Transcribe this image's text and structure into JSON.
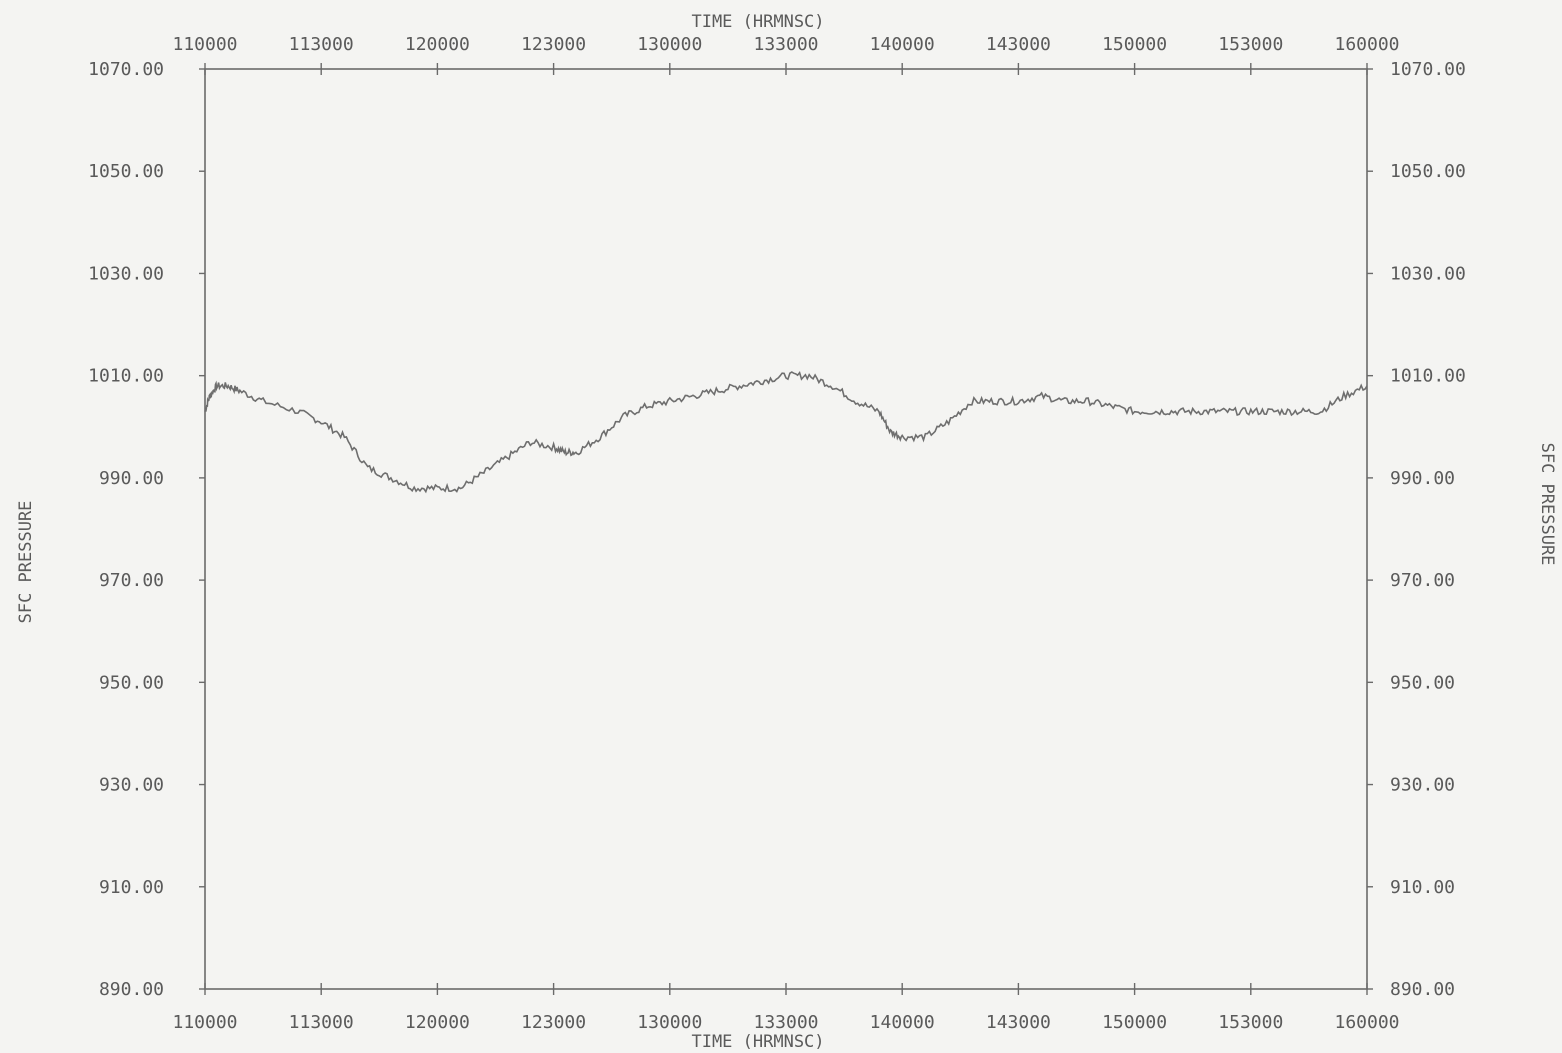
{
  "chart_data": {
    "type": "line",
    "title": "",
    "xlabel": "TIME (HRMNSC)",
    "ylabel": "SFC PRESSURE",
    "x_ticks": [
      "110000",
      "113000",
      "120000",
      "123000",
      "130000",
      "133000",
      "140000",
      "143000",
      "150000",
      "153000",
      "160000"
    ],
    "y_ticks": [
      "890.00",
      "910.00",
      "930.00",
      "950.00",
      "970.00",
      "990.00",
      "1010.00",
      "1030.00",
      "1050.00",
      "1070.00"
    ],
    "xlim_hours": [
      11.0,
      16.0
    ],
    "ylim": [
      890,
      1070
    ],
    "grid": false,
    "legend": "none",
    "series": [
      {
        "x_hours": [
          11.0,
          11.02,
          11.05,
          11.1,
          11.15,
          11.25,
          11.4,
          11.5,
          11.6,
          11.7,
          11.8,
          11.9,
          12.0,
          12.1,
          12.2,
          12.3,
          12.4,
          12.5,
          12.55,
          12.6,
          12.7,
          12.8,
          12.9,
          13.0,
          13.1,
          13.2,
          13.3,
          13.4,
          13.5,
          13.6,
          13.7,
          13.8,
          13.9,
          13.95,
          14.0,
          14.1,
          14.2,
          14.3,
          14.4,
          14.5,
          14.6,
          14.7,
          14.8,
          14.9,
          15.0,
          15.1,
          15.2,
          15.3,
          15.4,
          15.5,
          15.6,
          15.7,
          15.8,
          15.9,
          16.0
        ],
        "values": [
          1003,
          1006,
          1008,
          1008,
          1007,
          1005,
          1003,
          1001,
          998,
          992,
          990,
          988,
          988,
          988,
          991,
          994,
          997,
          996,
          995,
          995,
          998,
          1002,
          1004,
          1005,
          1006,
          1007,
          1008,
          1009,
          1010,
          1010,
          1008,
          1005,
          1003,
          999,
          998,
          998,
          1001,
          1005,
          1005,
          1005,
          1006,
          1005,
          1005,
          1004,
          1003,
          1003,
          1003,
          1003,
          1003,
          1003,
          1003,
          1003,
          1003,
          1006,
          1008
        ]
      }
    ]
  }
}
